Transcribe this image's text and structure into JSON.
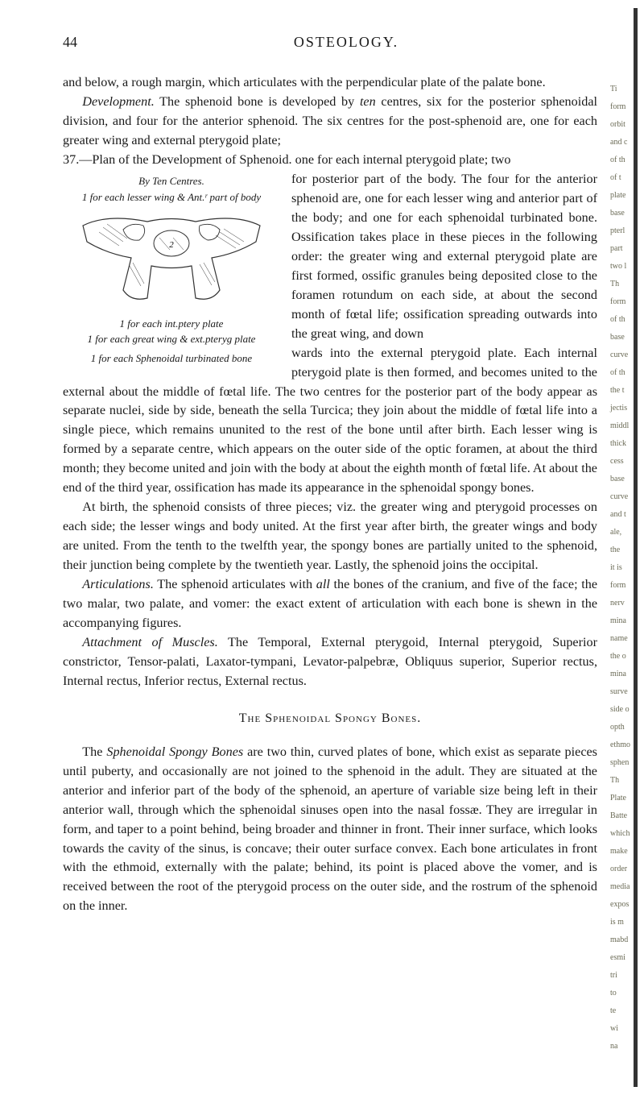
{
  "page_number": "44",
  "running_title": "OSTEOLOGY.",
  "para1": "and below, a rough margin, which articulates with the perpendicular plate of the palate bone.",
  "para2_lead_italic": "Development.",
  "para2a": " The sphenoid bone is developed by ",
  "para2_ten": "ten",
  "para2b": " centres, six for the posterior sphenoidal division, and four for the anterior sphenoid. The six centres for the post-sphenoid are, one for each greater wing and external pterygoid plate;",
  "para3_item": "37.—Plan of the Development of Sphenoid. one for each internal pterygoid plate; two",
  "figure": {
    "caption_top": "By Ten Centres.",
    "caption_top2": "1 for each lesser wing & Ant.ʳ part of body",
    "caption_mid": "1 for each int.ptery plate",
    "caption_mid2": "1 for each great wing & ext.pteryg plate",
    "caption_bot": "1 for each Sphenoidal turbinated bone",
    "label_2": "2"
  },
  "para4": "for posterior part of the body. The four for the anterior sphenoid are, one for each lesser wing and anterior part of the body; and one for each sphenoidal turbinated bone. Ossification takes place in these pieces in the following order: the greater wing and external pterygoid plate are first formed, ossific granules being deposited close to the foramen rotundum on each side, at about the second month of fœtal life; ossification spreading outwards into the great wing, and down",
  "para5": "wards into the external pterygoid plate. Each internal pterygoid plate is then formed, and becomes united to the external about the middle of fœtal life. The two centres for the posterior part of the body appear as separate nuclei, side by side, beneath the sella Turcica; they join about the middle of fœtal life into a single piece, which remains ununited to the rest of the bone until after birth. Each lesser wing is formed by a separate centre, which appears on the outer side of the optic foramen, at about the third month; they become united and join with the body at about the eighth month of fœtal life. At about the end of the third year, ossification has made its appearance in the sphenoidal spongy bones.",
  "para6": "At birth, the sphenoid consists of three pieces; viz. the greater wing and pterygoid processes on each side; the lesser wings and body united. At the first year after birth, the greater wings and body are united. From the tenth to the twelfth year, the spongy bones are partially united to the sphenoid, their junction being complete by the twentieth year. Lastly, the sphenoid joins the occipital.",
  "para7_lead": "Articulations.",
  "para7a": " The sphenoid articulates with ",
  "para7_all": "all",
  "para7b": " the bones of the cranium, and five of the face; the two malar, two palate, and vomer: the exact extent of articulation with each bone is shewn in the accompanying figures.",
  "para8_lead": "Attachment of Muscles.",
  "para8": " The Temporal, External pterygoid, Internal pterygoid, Superior constrictor, Tensor-palati, Laxator-tympani, Levator-palpebræ, Obliquus superior, Superior rectus, Internal rectus, Inferior rectus, External rectus.",
  "section_heading": "The Sphenoidal Spongy Bones.",
  "para9a": "The ",
  "para9_lead": "Sphenoidal Spongy Bones",
  "para9b": " are two thin, curved plates of bone, which exist as separate pieces until puberty, and occasionally are not joined to the sphenoid in the adult. They are situated at the anterior and inferior part of the body of the sphenoid, an aperture of variable size being left in their anterior wall, through which the sphenoidal sinuses open into the nasal fossæ. They are irregular in form, and taper to a point behind, being broader and thinner in front. Their inner surface, which looks towards the cavity of the sinus, is concave; their outer surface convex. Each bone articulates in front with the ethmoid, externally with the palate; behind, its point is placed above the vomer, and is received between the root of the pterygoid process on the outer side, and the rostrum of the sphenoid on the inner.",
  "margin_fragments": [
    "Ti",
    "form",
    "orbit",
    "and c",
    "of th",
    "of t",
    "plate",
    "base",
    "pterl",
    "part",
    "two l",
    "Th",
    "form",
    "of th",
    "base",
    "curve",
    "of th",
    "the t",
    "jectis",
    "middl",
    "thick",
    "cess",
    "base",
    "curve",
    "and t",
    "ale,",
    "the",
    "it is",
    "form",
    "nerv",
    "mina",
    "name",
    "the o",
    "mina",
    "surve",
    "side o",
    "opth",
    "ethmo",
    "sphen",
    "Th",
    "Plate",
    "Batte",
    "which",
    "make",
    "order",
    "media",
    "expos",
    "is m",
    "mabd",
    "esmi",
    "tri",
    "to",
    "te",
    "wi",
    "na"
  ]
}
